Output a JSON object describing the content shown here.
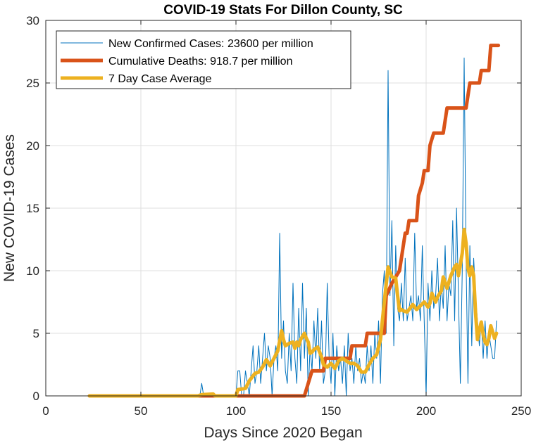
{
  "chart_data": {
    "type": "line",
    "title": "COVID-19 Stats For Dillon County, SC",
    "xlabel": "Days Since 2020 Began",
    "ylabel": "New COVID-19 Cases",
    "xlim": [
      0,
      250
    ],
    "ylim": [
      0,
      30
    ],
    "xticks": [
      0,
      50,
      100,
      150,
      200,
      250
    ],
    "yticks": [
      0,
      5,
      10,
      15,
      20,
      25,
      30
    ],
    "grid": true,
    "legend_position": "top-left",
    "series": [
      {
        "name": "New Confirmed Cases: 23600 per million",
        "color": "#0072BD",
        "points": [
          [
            23,
            0
          ],
          [
            80,
            0
          ],
          [
            81,
            0
          ],
          [
            82,
            1
          ],
          [
            83,
            0
          ],
          [
            84,
            0
          ],
          [
            85,
            0
          ],
          [
            86,
            0
          ],
          [
            87,
            0
          ],
          [
            88,
            0
          ],
          [
            89,
            0
          ],
          [
            90,
            0
          ],
          [
            91,
            0
          ],
          [
            92,
            0
          ],
          [
            93,
            0
          ],
          [
            94,
            0
          ],
          [
            95,
            0
          ],
          [
            96,
            0
          ],
          [
            97,
            0
          ],
          [
            98,
            0
          ],
          [
            99,
            0
          ],
          [
            100,
            0
          ],
          [
            101,
            2
          ],
          [
            102,
            2
          ],
          [
            103,
            0
          ],
          [
            104,
            0
          ],
          [
            105,
            2
          ],
          [
            106,
            1
          ],
          [
            107,
            0
          ],
          [
            108,
            2
          ],
          [
            109,
            4
          ],
          [
            110,
            1
          ],
          [
            111,
            2
          ],
          [
            112,
            4
          ],
          [
            113,
            1
          ],
          [
            114,
            3
          ],
          [
            115,
            5
          ],
          [
            116,
            2
          ],
          [
            117,
            4
          ],
          [
            118,
            3
          ],
          [
            119,
            0
          ],
          [
            120,
            3
          ],
          [
            121,
            4
          ],
          [
            122,
            2
          ],
          [
            123,
            13
          ],
          [
            124,
            3
          ],
          [
            125,
            6
          ],
          [
            126,
            2
          ],
          [
            127,
            1
          ],
          [
            128,
            5
          ],
          [
            129,
            2
          ],
          [
            130,
            9
          ],
          [
            131,
            3
          ],
          [
            132,
            1
          ],
          [
            133,
            7
          ],
          [
            134,
            2
          ],
          [
            135,
            9
          ],
          [
            136,
            3
          ],
          [
            137,
            7
          ],
          [
            138,
            0
          ],
          [
            139,
            4
          ],
          [
            140,
            2
          ],
          [
            141,
            6
          ],
          [
            142,
            3
          ],
          [
            143,
            7
          ],
          [
            144,
            2
          ],
          [
            145,
            6
          ],
          [
            146,
            1
          ],
          [
            147,
            2
          ],
          [
            148,
            9
          ],
          [
            149,
            3
          ],
          [
            150,
            1
          ],
          [
            151,
            5
          ],
          [
            152,
            0
          ],
          [
            153,
            4
          ],
          [
            154,
            2
          ],
          [
            155,
            3
          ],
          [
            156,
            1
          ],
          [
            157,
            4
          ],
          [
            158,
            0
          ],
          [
            159,
            5
          ],
          [
            160,
            2
          ],
          [
            161,
            3
          ],
          [
            162,
            1
          ],
          [
            163,
            4
          ],
          [
            164,
            2
          ],
          [
            165,
            3
          ],
          [
            166,
            1
          ],
          [
            167,
            2
          ],
          [
            168,
            1
          ],
          [
            169,
            4
          ],
          [
            170,
            2
          ],
          [
            171,
            4
          ],
          [
            172,
            1
          ],
          [
            173,
            5
          ],
          [
            174,
            3
          ],
          [
            175,
            6
          ],
          [
            176,
            1
          ],
          [
            177,
            8
          ],
          [
            178,
            10
          ],
          [
            179,
            5
          ],
          [
            180,
            26
          ],
          [
            181,
            8
          ],
          [
            182,
            14
          ],
          [
            183,
            4
          ],
          [
            184,
            12
          ],
          [
            185,
            7
          ],
          [
            186,
            6
          ],
          [
            187,
            9
          ],
          [
            188,
            6
          ],
          [
            189,
            11
          ],
          [
            190,
            6
          ],
          [
            191,
            7
          ],
          [
            192,
            8
          ],
          [
            193,
            6
          ],
          [
            194,
            13
          ],
          [
            195,
            7
          ],
          [
            196,
            8
          ],
          [
            197,
            6
          ],
          [
            198,
            12
          ],
          [
            199,
            6
          ],
          [
            200,
            0
          ],
          [
            201,
            9
          ],
          [
            202,
            6
          ],
          [
            203,
            10
          ],
          [
            204,
            7
          ],
          [
            205,
            8
          ],
          [
            206,
            11
          ],
          [
            207,
            6
          ],
          [
            208,
            9
          ],
          [
            209,
            7
          ],
          [
            210,
            12
          ],
          [
            211,
            6
          ],
          [
            212,
            9
          ],
          [
            213,
            8
          ],
          [
            214,
            14
          ],
          [
            215,
            6
          ],
          [
            216,
            15
          ],
          [
            217,
            8
          ],
          [
            218,
            1
          ],
          [
            219,
            10
          ],
          [
            220,
            27
          ],
          [
            221,
            11
          ],
          [
            222,
            1
          ],
          [
            223,
            12
          ],
          [
            224,
            4
          ],
          [
            225,
            11
          ],
          [
            226,
            8
          ],
          [
            227,
            6
          ],
          [
            228,
            4
          ],
          [
            229,
            6
          ],
          [
            230,
            3
          ],
          [
            231,
            6
          ],
          [
            232,
            3
          ],
          [
            233,
            5
          ],
          [
            234,
            4
          ],
          [
            235,
            3
          ],
          [
            236,
            3
          ],
          [
            237,
            6
          ]
        ]
      },
      {
        "name": "Cumulative Deaths: 918.7 per million",
        "color": "#D95319",
        "points": [
          [
            23,
            0
          ],
          [
            136,
            0
          ],
          [
            138,
            1
          ],
          [
            140,
            2
          ],
          [
            146,
            2
          ],
          [
            147,
            3
          ],
          [
            160,
            3
          ],
          [
            161,
            4
          ],
          [
            168,
            4
          ],
          [
            169,
            5
          ],
          [
            178,
            5
          ],
          [
            179,
            8
          ],
          [
            182,
            9
          ],
          [
            186,
            10
          ],
          [
            188,
            12
          ],
          [
            189,
            13
          ],
          [
            190,
            13
          ],
          [
            191,
            14
          ],
          [
            195,
            14
          ],
          [
            196,
            16
          ],
          [
            198,
            17
          ],
          [
            199,
            18
          ],
          [
            201,
            18
          ],
          [
            202,
            20
          ],
          [
            204,
            21
          ],
          [
            209,
            21
          ],
          [
            211,
            23
          ],
          [
            221,
            23
          ],
          [
            223,
            25
          ],
          [
            228,
            25
          ],
          [
            229,
            26
          ],
          [
            233,
            26
          ],
          [
            234,
            28
          ],
          [
            238,
            28
          ]
        ]
      },
      {
        "name": "7 Day Case Average",
        "color": "#EDB120",
        "points": [
          [
            23,
            0
          ],
          [
            80,
            0
          ],
          [
            82,
            0.1
          ],
          [
            88,
            0.15
          ],
          [
            89,
            0
          ],
          [
            100,
            0
          ],
          [
            101,
            0.5
          ],
          [
            105,
            0.6
          ],
          [
            107,
            1.2
          ],
          [
            110,
            1.8
          ],
          [
            112,
            1.9
          ],
          [
            114,
            2.3
          ],
          [
            116,
            2.9
          ],
          [
            118,
            2.4
          ],
          [
            120,
            3
          ],
          [
            122,
            3.6
          ],
          [
            124,
            5.2
          ],
          [
            125,
            4.5
          ],
          [
            126,
            4
          ],
          [
            128,
            4.2
          ],
          [
            130,
            4.3
          ],
          [
            131,
            3.8
          ],
          [
            132,
            4.3
          ],
          [
            133,
            4
          ],
          [
            134,
            4.5
          ],
          [
            136,
            5
          ],
          [
            137,
            4.6
          ],
          [
            138,
            4.3
          ],
          [
            139,
            3.4
          ],
          [
            140,
            3.5
          ],
          [
            141,
            3.7
          ],
          [
            142,
            3.8
          ],
          [
            143,
            3.9
          ],
          [
            144,
            3.5
          ],
          [
            145,
            3.1
          ],
          [
            146,
            2.5
          ],
          [
            148,
            2.3
          ],
          [
            150,
            2.6
          ],
          [
            152,
            2.2
          ],
          [
            154,
            2.8
          ],
          [
            156,
            3
          ],
          [
            158,
            2.8
          ],
          [
            160,
            2.6
          ],
          [
            162,
            2.6
          ],
          [
            164,
            2.4
          ],
          [
            166,
            1.9
          ],
          [
            168,
            1.9
          ],
          [
            170,
            2.5
          ],
          [
            172,
            3
          ],
          [
            174,
            3.3
          ],
          [
            176,
            4.5
          ],
          [
            178,
            7.5
          ],
          [
            180,
            10.3
          ],
          [
            181,
            9.9
          ],
          [
            182,
            9.5
          ],
          [
            184,
            9.4
          ],
          [
            185,
            8
          ],
          [
            186,
            6.8
          ],
          [
            187,
            6.9
          ],
          [
            188,
            6.8
          ],
          [
            190,
            6.7
          ],
          [
            191,
            6.9
          ],
          [
            193,
            7.3
          ],
          [
            195,
            6.9
          ],
          [
            197,
            7.2
          ],
          [
            199,
            7.5
          ],
          [
            201,
            7.1
          ],
          [
            202,
            7.4
          ],
          [
            203,
            8.2
          ],
          [
            205,
            7.5
          ],
          [
            206,
            7.9
          ],
          [
            208,
            8.4
          ],
          [
            209,
            9.5
          ],
          [
            211,
            8.6
          ],
          [
            213,
            9.6
          ],
          [
            215,
            10.3
          ],
          [
            216,
            10.5
          ],
          [
            217,
            9.6
          ],
          [
            218,
            10.5
          ],
          [
            219,
            11.4
          ],
          [
            220,
            13.3
          ],
          [
            221,
            12.2
          ],
          [
            222,
            10.2
          ],
          [
            223,
            9.6
          ],
          [
            224,
            10.3
          ],
          [
            225,
            9.6
          ],
          [
            226,
            6.6
          ],
          [
            227,
            4.5
          ],
          [
            228,
            5.3
          ],
          [
            229,
            5.9
          ],
          [
            230,
            4.9
          ],
          [
            231,
            4.3
          ],
          [
            232,
            4.1
          ],
          [
            233,
            4.6
          ],
          [
            234,
            5.6
          ],
          [
            235,
            5.1
          ],
          [
            236,
            4.6
          ],
          [
            237,
            5
          ]
        ]
      }
    ]
  }
}
